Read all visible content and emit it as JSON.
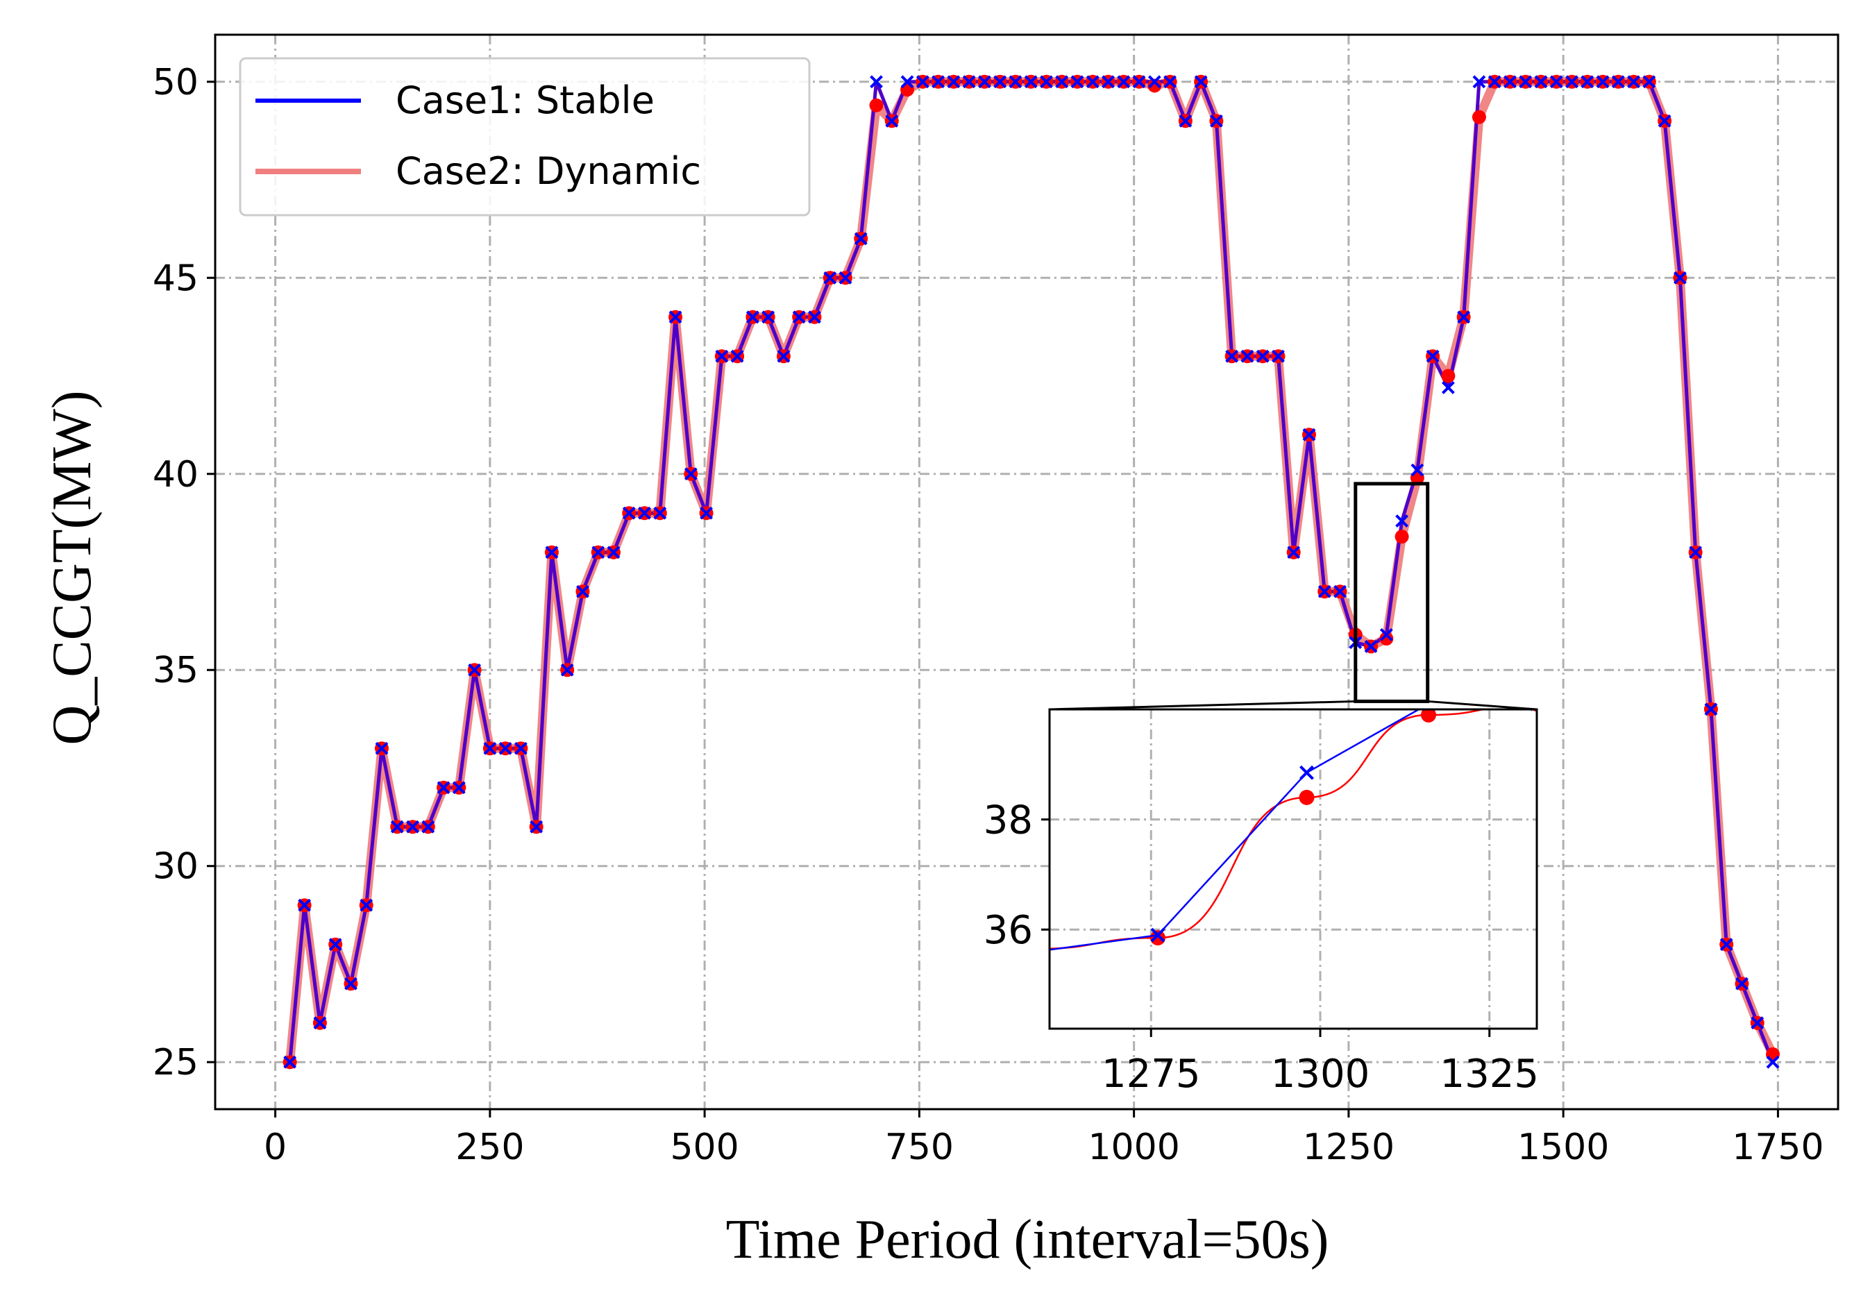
{
  "chart_data": {
    "type": "line",
    "xlabel": "Time Period (interval=50s)",
    "ylabel": "Q_CCGT(MW)",
    "xlim": [
      -70,
      1820
    ],
    "ylim": [
      23.8,
      51.2
    ],
    "xticks": [
      0,
      250,
      500,
      750,
      1000,
      1250,
      1500,
      1750
    ],
    "yticks": [
      25,
      30,
      35,
      40,
      45,
      50
    ],
    "grid": true,
    "legend_position": "top-left",
    "series": [
      {
        "name": "Case1: Stable",
        "color": "#0000ff",
        "marker": "x",
        "points": [
          [
            17,
            25
          ],
          [
            34,
            29
          ],
          [
            52,
            26
          ],
          [
            70,
            28
          ],
          [
            88,
            27
          ],
          [
            106,
            29
          ],
          [
            124,
            33
          ],
          [
            142,
            31
          ],
          [
            160,
            31
          ],
          [
            178,
            31
          ],
          [
            196,
            32
          ],
          [
            214,
            32
          ],
          [
            232,
            35
          ],
          [
            250,
            33
          ],
          [
            268,
            33
          ],
          [
            286,
            33
          ],
          [
            304,
            31
          ],
          [
            322,
            38
          ],
          [
            340,
            35
          ],
          [
            358,
            37
          ],
          [
            376,
            38
          ],
          [
            394,
            38
          ],
          [
            412,
            39
          ],
          [
            430,
            39
          ],
          [
            448,
            39
          ],
          [
            466,
            44
          ],
          [
            484,
            40
          ],
          [
            502,
            39
          ],
          [
            520,
            43
          ],
          [
            538,
            43
          ],
          [
            556,
            44
          ],
          [
            574,
            44
          ],
          [
            592,
            43
          ],
          [
            610,
            44
          ],
          [
            628,
            44
          ],
          [
            646,
            45
          ],
          [
            664,
            45
          ],
          [
            682,
            46
          ],
          [
            700,
            50
          ],
          [
            718,
            49
          ],
          [
            736,
            50
          ],
          [
            754,
            50
          ],
          [
            772,
            50
          ],
          [
            790,
            50
          ],
          [
            808,
            50
          ],
          [
            826,
            50
          ],
          [
            844,
            50
          ],
          [
            862,
            50
          ],
          [
            880,
            50
          ],
          [
            898,
            50
          ],
          [
            916,
            50
          ],
          [
            934,
            50
          ],
          [
            952,
            50
          ],
          [
            970,
            50
          ],
          [
            988,
            50
          ],
          [
            1006,
            50
          ],
          [
            1024,
            50
          ],
          [
            1042,
            50
          ],
          [
            1060,
            49
          ],
          [
            1078,
            50
          ],
          [
            1096,
            49
          ],
          [
            1114,
            43
          ],
          [
            1132,
            43
          ],
          [
            1150,
            43
          ],
          [
            1168,
            43
          ],
          [
            1186,
            38
          ],
          [
            1204,
            41
          ],
          [
            1222,
            37
          ],
          [
            1240,
            37
          ],
          [
            1258,
            35.7
          ],
          [
            1276,
            35.6
          ],
          [
            1294,
            35.9
          ],
          [
            1312,
            38.8
          ],
          [
            1330,
            40.1
          ],
          [
            1348,
            43
          ],
          [
            1366,
            42.2
          ],
          [
            1384,
            44
          ],
          [
            1402,
            50
          ],
          [
            1420,
            50
          ],
          [
            1438,
            50
          ],
          [
            1456,
            50
          ],
          [
            1474,
            50
          ],
          [
            1492,
            50
          ],
          [
            1510,
            50
          ],
          [
            1528,
            50
          ],
          [
            1546,
            50
          ],
          [
            1564,
            50
          ],
          [
            1582,
            50
          ],
          [
            1600,
            50
          ],
          [
            1618,
            49
          ],
          [
            1636,
            45
          ],
          [
            1654,
            38
          ],
          [
            1672,
            34
          ],
          [
            1690,
            28
          ],
          [
            1708,
            27
          ],
          [
            1726,
            26
          ],
          [
            1744,
            25
          ]
        ]
      },
      {
        "name": "Case2: Dynamic",
        "color": "#ff0000",
        "line_color": "#f08080",
        "marker": "o",
        "points": [
          [
            17,
            25
          ],
          [
            34,
            29
          ],
          [
            52,
            26
          ],
          [
            70,
            28
          ],
          [
            88,
            27
          ],
          [
            106,
            29
          ],
          [
            124,
            33
          ],
          [
            142,
            31
          ],
          [
            160,
            31
          ],
          [
            178,
            31
          ],
          [
            196,
            32
          ],
          [
            214,
            32
          ],
          [
            232,
            35
          ],
          [
            250,
            33
          ],
          [
            268,
            33
          ],
          [
            286,
            33
          ],
          [
            304,
            31
          ],
          [
            322,
            38
          ],
          [
            340,
            35
          ],
          [
            358,
            37
          ],
          [
            376,
            38
          ],
          [
            394,
            38
          ],
          [
            412,
            39
          ],
          [
            430,
            39
          ],
          [
            448,
            39
          ],
          [
            466,
            44
          ],
          [
            484,
            40
          ],
          [
            502,
            39
          ],
          [
            520,
            43
          ],
          [
            538,
            43
          ],
          [
            556,
            44
          ],
          [
            574,
            44
          ],
          [
            592,
            43
          ],
          [
            610,
            44
          ],
          [
            628,
            44
          ],
          [
            646,
            45
          ],
          [
            664,
            45
          ],
          [
            682,
            46
          ],
          [
            700,
            49.4
          ],
          [
            718,
            49
          ],
          [
            736,
            49.8
          ],
          [
            754,
            50
          ],
          [
            772,
            50
          ],
          [
            790,
            50
          ],
          [
            808,
            50
          ],
          [
            826,
            50
          ],
          [
            844,
            50
          ],
          [
            862,
            50
          ],
          [
            880,
            50
          ],
          [
            898,
            50
          ],
          [
            916,
            50
          ],
          [
            934,
            50
          ],
          [
            952,
            50
          ],
          [
            970,
            50
          ],
          [
            988,
            50
          ],
          [
            1006,
            50
          ],
          [
            1024,
            49.9
          ],
          [
            1042,
            50
          ],
          [
            1060,
            49
          ],
          [
            1078,
            50
          ],
          [
            1096,
            49
          ],
          [
            1114,
            43
          ],
          [
            1132,
            43
          ],
          [
            1150,
            43
          ],
          [
            1168,
            43
          ],
          [
            1186,
            38
          ],
          [
            1204,
            41
          ],
          [
            1222,
            37
          ],
          [
            1240,
            37
          ],
          [
            1258,
            35.9
          ],
          [
            1276,
            35.6
          ],
          [
            1294,
            35.8
          ],
          [
            1312,
            38.4
          ],
          [
            1330,
            39.9
          ],
          [
            1348,
            43
          ],
          [
            1366,
            42.5
          ],
          [
            1384,
            44
          ],
          [
            1402,
            49.1
          ],
          [
            1420,
            50
          ],
          [
            1438,
            50
          ],
          [
            1456,
            50
          ],
          [
            1474,
            50
          ],
          [
            1492,
            50
          ],
          [
            1510,
            50
          ],
          [
            1528,
            50
          ],
          [
            1546,
            50
          ],
          [
            1564,
            50
          ],
          [
            1582,
            50
          ],
          [
            1600,
            50
          ],
          [
            1618,
            49
          ],
          [
            1636,
            45
          ],
          [
            1654,
            38
          ],
          [
            1672,
            34
          ],
          [
            1690,
            28
          ],
          [
            1708,
            27
          ],
          [
            1726,
            26
          ],
          [
            1744,
            25.2
          ]
        ]
      }
    ],
    "inset": {
      "xlim": [
        1260,
        1332
      ],
      "ylim": [
        34.2,
        40
      ],
      "xticks": [
        1275,
        1300,
        1325
      ],
      "yticks": [
        36,
        38
      ],
      "stable_points": [
        [
          1258,
          35.6
        ],
        [
          1276,
          35.9
        ],
        [
          1298,
          38.85
        ],
        [
          1316,
          40.1
        ],
        [
          1332,
          40.1
        ]
      ],
      "dynamic_points": [
        [
          1258,
          35.65
        ],
        [
          1276,
          35.85
        ],
        [
          1298,
          38.4
        ],
        [
          1316,
          39.9
        ],
        [
          1332,
          40.1
        ]
      ],
      "highlight_box": {
        "x": [
          1258,
          1342
        ],
        "y": [
          34.2,
          39.75
        ]
      }
    }
  }
}
